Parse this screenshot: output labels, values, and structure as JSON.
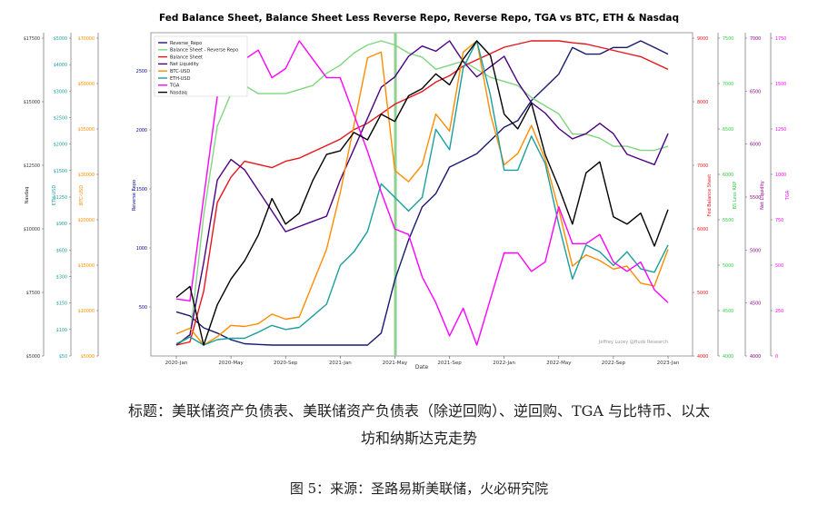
{
  "chart_data": {
    "type": "line",
    "title": "Fed Balance Sheet, Balance Sheet Less Reverse Repo, Reverse Repo, TGA vs BTC, ETH & Nasdaq",
    "xlabel": "Date",
    "x_ticks": [
      "2020-Jan",
      "2020-May",
      "2020-Sep",
      "2021-Jan",
      "2021-May",
      "2021-Sep",
      "2022-Jan",
      "2022-May",
      "2022-Sep",
      "2023-Jan"
    ],
    "x": [
      "2020-01",
      "2020-02",
      "2020-03",
      "2020-04",
      "2020-05",
      "2020-06",
      "2020-07",
      "2020-08",
      "2020-09",
      "2020-10",
      "2020-11",
      "2020-12",
      "2021-01",
      "2021-02",
      "2021-03",
      "2021-04",
      "2021-05",
      "2021-06",
      "2021-07",
      "2021-08",
      "2021-09",
      "2021-10",
      "2021-11",
      "2021-12",
      "2022-01",
      "2022-02",
      "2022-03",
      "2022-04",
      "2022-05",
      "2022-06",
      "2022-07",
      "2022-08",
      "2022-09",
      "2022-10",
      "2022-11",
      "2022-12",
      "2023-01"
    ],
    "highlight_date": "2021-05",
    "watermark": "Jeffrey Lucey @Huds Research",
    "axes": [
      {
        "key": "nasdaq",
        "label": "Nasdaq",
        "color": "#333333",
        "ticks": [
          "$17500",
          "$15000",
          "$12500",
          "$10000",
          "$7500",
          "$5000"
        ]
      },
      {
        "key": "eth",
        "label": "ETH-USD",
        "color": "#1a9e9e",
        "ticks": [
          "$5000",
          "$4000",
          "$3000",
          "$2500",
          "$2000",
          "$1500",
          "$1250",
          "$900",
          "$600",
          "$300",
          "$150",
          "$100",
          "$50"
        ]
      },
      {
        "key": "btc",
        "label": "BTC-USD",
        "color": "#ff8c00",
        "ticks": [
          "$70000",
          "$50000",
          "$35000",
          "$30000",
          "$20000",
          "$15000",
          "$10000",
          "$5000"
        ]
      },
      {
        "key": "reverse_repo",
        "label": "Reverse Repo",
        "color": "#00008b",
        "ticks": [
          "2500",
          "2000",
          "1500",
          "1000",
          "500"
        ]
      },
      {
        "key": "fed_bs",
        "label": "Fed Balance Sheet",
        "color": "#e8141b",
        "ticks": [
          "9000",
          "8000",
          "7000",
          "6000",
          "5000",
          "4000"
        ]
      },
      {
        "key": "bs_less_rrp",
        "label": "BS Less RRP",
        "color": "#2ecc40",
        "ticks": [
          "7500",
          "7000",
          "6500",
          "6000",
          "5500",
          "5000",
          "4500",
          "4000"
        ]
      },
      {
        "key": "net_liquidity",
        "label": "Net Liquidity",
        "color": "#8b008b",
        "ticks": [
          "7000",
          "6500",
          "6000",
          "5500",
          "5000",
          "4500",
          "4000"
        ]
      },
      {
        "key": "tga",
        "label": "TGA",
        "color": "#ff00ff",
        "ticks": [
          "1750",
          "1500",
          "1250",
          "1000",
          "750",
          "500",
          "250",
          "0"
        ]
      }
    ],
    "series": [
      {
        "name": "Reverse_Repo",
        "color": "#191970",
        "values": [
          260,
          230,
          140,
          100,
          50,
          20,
          15,
          10,
          10,
          10,
          10,
          10,
          10,
          10,
          10,
          100,
          500,
          800,
          1050,
          1150,
          1350,
          1400,
          1450,
          1550,
          1650,
          1700,
          1850,
          1950,
          2050,
          2250,
          2200,
          2200,
          2250,
          2250,
          2300,
          2250,
          2200
        ]
      },
      {
        "name": "Balance Sheet - Reverse Repo",
        "color": "#7fd67f",
        "values": [
          4.0,
          4.1,
          5.6,
          6.7,
          7.1,
          7.2,
          7.1,
          7.1,
          7.1,
          7.15,
          7.2,
          7.35,
          7.45,
          7.6,
          7.7,
          7.75,
          7.7,
          7.6,
          7.55,
          7.4,
          7.45,
          7.5,
          7.4,
          7.3,
          7.25,
          7.2,
          7.05,
          6.95,
          6.85,
          6.6,
          6.6,
          6.55,
          6.45,
          6.45,
          6.4,
          6.4,
          6.45
        ]
      },
      {
        "name": "Balance Sheet",
        "color": "#e8141b",
        "values": [
          4.15,
          4.2,
          5.0,
          6.4,
          6.8,
          7.05,
          7.0,
          6.95,
          7.05,
          7.1,
          7.2,
          7.3,
          7.4,
          7.55,
          7.65,
          7.8,
          7.95,
          8.05,
          8.15,
          8.3,
          8.4,
          8.55,
          8.65,
          8.75,
          8.85,
          8.9,
          8.95,
          8.95,
          8.95,
          8.92,
          8.9,
          8.85,
          8.8,
          8.75,
          8.7,
          8.6,
          8.5
        ]
      },
      {
        "name": "Net Liquidity",
        "color": "#4b0082",
        "values": [
          4.0,
          4.1,
          4.8,
          5.6,
          5.8,
          5.7,
          5.5,
          5.3,
          5.1,
          5.15,
          5.2,
          5.25,
          5.6,
          5.9,
          6.2,
          6.5,
          6.6,
          6.8,
          6.9,
          6.85,
          6.95,
          6.75,
          6.6,
          6.7,
          6.8,
          6.55,
          6.35,
          6.25,
          6.1,
          6.0,
          6.05,
          6.15,
          6.05,
          5.85,
          5.8,
          5.75,
          6.05
        ]
      },
      {
        "name": "BTC-USD",
        "color": "#ff8c00",
        "values": [
          8000,
          9000,
          6000,
          7500,
          9500,
          9300,
          9800,
          11500,
          10600,
          11000,
          17000,
          23000,
          33000,
          45000,
          57000,
          58000,
          37000,
          35000,
          38000,
          47000,
          44000,
          58000,
          60000,
          47000,
          38000,
          40000,
          45000,
          39000,
          30000,
          20000,
          22000,
          21000,
          19500,
          20000,
          17000,
          16500,
          23000
        ]
      },
      {
        "name": "ETH-USD",
        "color": "#1a9e9e",
        "values": [
          150,
          250,
          130,
          210,
          230,
          230,
          320,
          420,
          360,
          390,
          560,
          730,
          1300,
          1500,
          1800,
          2500,
          2300,
          2100,
          2300,
          3300,
          3000,
          4200,
          4600,
          3800,
          2700,
          2700,
          3200,
          2800,
          1900,
          1100,
          1600,
          1500,
          1300,
          1500,
          1250,
          1200,
          1600
        ]
      },
      {
        "name": "TGA",
        "color": "#ff00ff",
        "values": [
          400,
          390,
          950,
          1500,
          1600,
          1700,
          1750,
          1600,
          1650,
          1800,
          1700,
          1600,
          1600,
          1400,
          1200,
          980,
          780,
          750,
          520,
          380,
          200,
          350,
          150,
          400,
          650,
          650,
          550,
          600,
          900,
          700,
          700,
          750,
          600,
          550,
          600,
          450,
          380
        ]
      },
      {
        "name": "Nasdaq",
        "color": "#000000",
        "values": [
          9000,
          9300,
          7700,
          8800,
          9500,
          10000,
          10700,
          11700,
          11000,
          11300,
          12200,
          12900,
          13000,
          13500,
          13300,
          14000,
          13800,
          14500,
          14700,
          15100,
          14800,
          15500,
          16000,
          15600,
          14000,
          13600,
          14300,
          12900,
          12000,
          11000,
          12400,
          12700,
          11200,
          11000,
          11300,
          10400,
          11400
        ]
      }
    ]
  },
  "captions": {
    "line1": "标题：美联储资产负债表、美联储资产负债表（除逆回购）、逆回购、TGA 与比特币、以太",
    "line2": "坊和纳斯达克走势",
    "line3": "图 5：来源：圣路易斯美联储，火必研究院"
  }
}
